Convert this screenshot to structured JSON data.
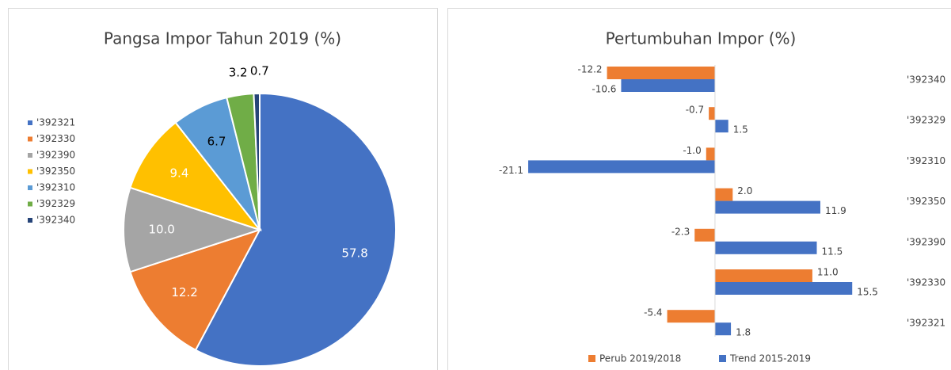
{
  "chart_data": [
    {
      "type": "pie",
      "title": "Pangsa Impor Tahun 2019 (%)",
      "categories": [
        "'392321",
        "'392330",
        "'392390",
        "'392350",
        "'392310",
        "'392329",
        "'392340"
      ],
      "values": [
        57.8,
        12.2,
        10.0,
        9.4,
        6.7,
        3.2,
        0.7
      ],
      "value_labels": [
        "57.8",
        "12.2",
        "10.0",
        "9.4",
        "6.7",
        "3.2",
        "0.7"
      ],
      "colors": [
        "#4472c4",
        "#ed7d31",
        "#a5a5a5",
        "#ffc000",
        "#5b9bd5",
        "#70ad47",
        "#264478"
      ],
      "legend": "left"
    },
    {
      "type": "hbar",
      "title": "Pertumbuhan Impor (%)",
      "categories": [
        "'392340",
        "'392329",
        "'392310",
        "'392350",
        "'392390",
        "'392330",
        "'392321"
      ],
      "series": [
        {
          "name": "Perub 2019/2018",
          "color": "#ed7d31",
          "values": [
            -12.2,
            -0.7,
            -1.0,
            2.0,
            -2.3,
            11.0,
            -5.4
          ],
          "value_labels": [
            "-12.2",
            "-0.7",
            "-1.0",
            "2.0",
            "-2.3",
            "11.0",
            "-5.4"
          ]
        },
        {
          "name": "Trend 2015-2019",
          "color": "#4472c4",
          "values": [
            -10.6,
            1.5,
            -21.1,
            11.9,
            11.5,
            15.5,
            1.8
          ],
          "value_labels": [
            "-10.6",
            "1.5",
            "-21.1",
            "11.9",
            "11.5",
            "15.5",
            "1.8"
          ]
        }
      ],
      "xlim": [
        -22,
        17
      ],
      "legend": "bottom"
    }
  ]
}
